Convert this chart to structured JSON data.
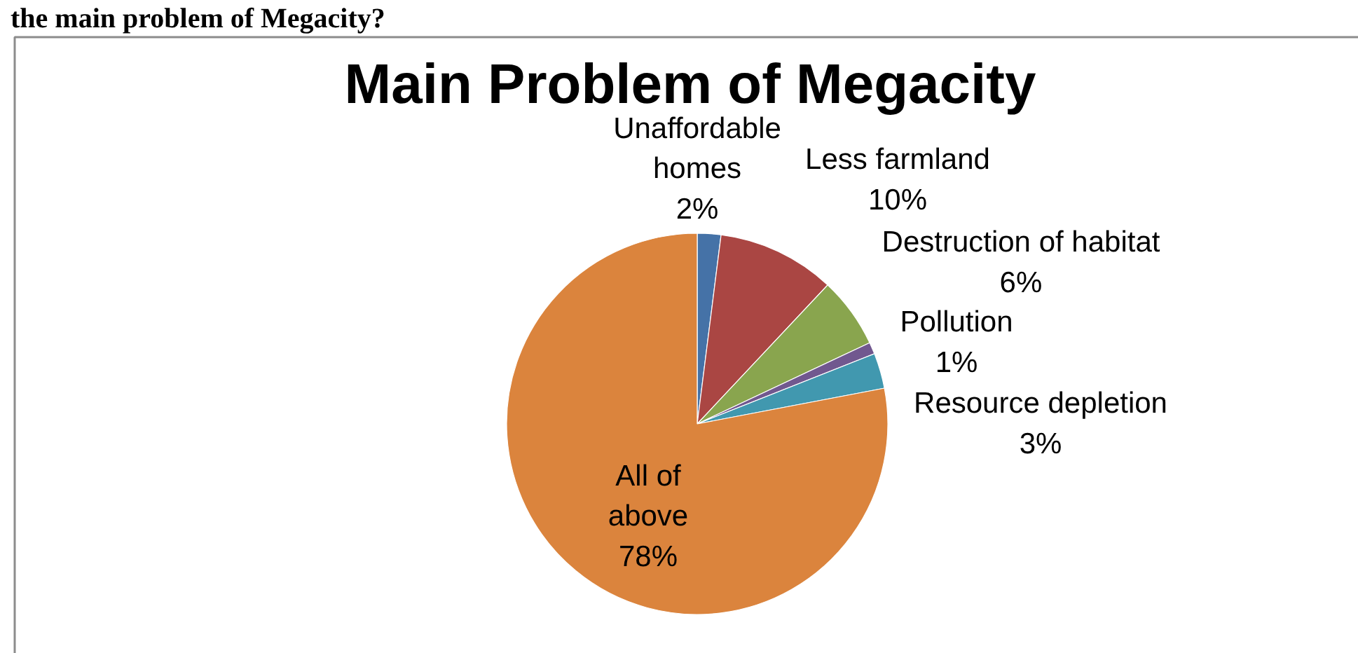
{
  "chart_data": {
    "type": "pie",
    "title": "Main Problem of Megacity",
    "categories": [
      "Unaffordable homes",
      "Less farmland",
      "Destruction of habitat",
      "Pollution",
      "Resource depletion",
      "All of above"
    ],
    "values": [
      2,
      10,
      6,
      1,
      3,
      78
    ],
    "colors": [
      "#4572a7",
      "#aa4643",
      "#89a54e",
      "#71588f",
      "#4198af",
      "#db843d"
    ],
    "value_labels": [
      "2%",
      "10%",
      "6%",
      "1%",
      "3%",
      "78%"
    ],
    "annotations": [
      "the main problem of Megacity?"
    ]
  }
}
